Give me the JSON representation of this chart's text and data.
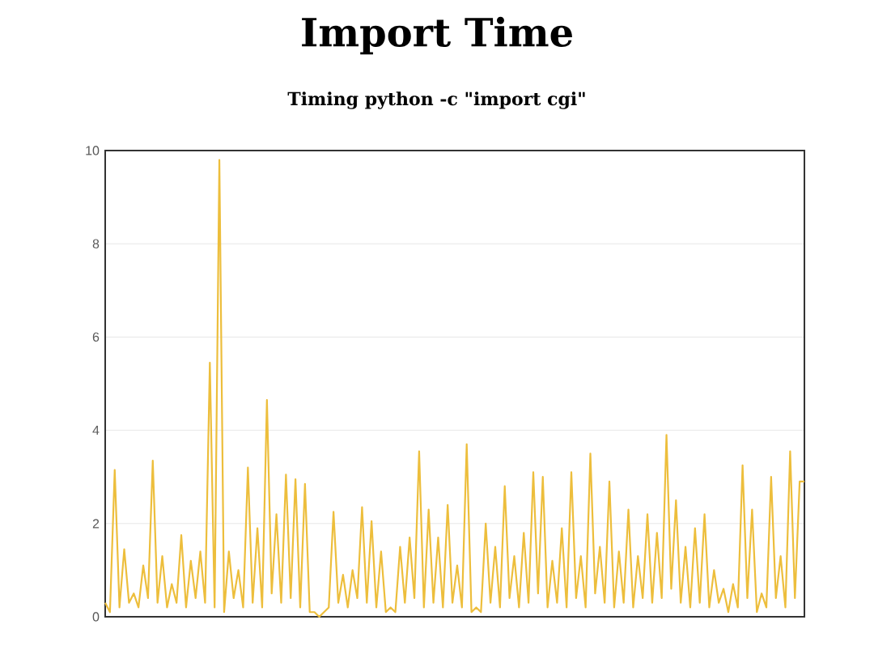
{
  "chart_data": {
    "type": "line",
    "title": "Import Time",
    "subtitle": "Timing python -c \"import cgi\"",
    "categories": [
      null,
      null,
      null,
      null,
      null,
      null,
      null,
      null,
      null,
      null,
      null,
      null,
      null,
      null,
      null,
      null,
      null,
      null,
      null,
      null,
      null,
      null,
      null,
      null,
      null,
      null,
      null,
      null,
      null,
      null,
      null,
      null,
      null,
      null,
      null,
      null,
      null,
      null,
      null,
      null,
      null,
      null,
      null,
      null,
      null,
      null,
      null,
      null,
      null,
      null,
      null,
      null,
      null,
      null,
      null,
      null,
      null,
      null,
      null,
      null,
      null,
      null,
      null,
      null,
      null,
      null,
      null,
      null,
      null,
      null,
      null,
      null,
      null,
      null,
      null,
      null,
      null,
      null,
      null,
      null,
      null,
      null,
      null,
      null,
      null,
      null,
      null,
      null,
      null,
      null,
      null,
      null,
      null,
      null,
      null,
      null,
      null,
      null,
      null,
      null,
      null,
      null,
      null,
      null,
      null,
      null,
      null,
      null,
      null,
      null,
      null,
      null,
      null,
      null,
      null,
      null,
      null,
      null,
      null,
      null,
      null,
      null,
      null,
      null,
      null,
      null,
      null,
      null,
      null,
      null,
      null,
      null,
      null,
      null,
      null,
      null,
      null,
      null,
      null,
      null,
      null,
      null,
      null,
      null,
      null,
      null,
      null,
      null
    ],
    "series": [
      {
        "color": "#edbe3c",
        "values": [
          0.3,
          0.1,
          3.15,
          0.2,
          1.45,
          0.3,
          0.5,
          0.2,
          1.1,
          0.4,
          3.35,
          0.3,
          1.3,
          0.2,
          0.7,
          0.3,
          1.75,
          0.2,
          1.2,
          0.4,
          1.4,
          0.3,
          5.45,
          0.2,
          9.8,
          0.1,
          1.4,
          0.4,
          1.0,
          0.2,
          3.2,
          0.3,
          1.9,
          0.2,
          4.65,
          0.5,
          2.2,
          0.3,
          3.05,
          0.4,
          2.95,
          0.2,
          2.85,
          0.1,
          0.1,
          0.0,
          0.1,
          0.2,
          2.25,
          0.3,
          0.9,
          0.2,
          1.0,
          0.4,
          2.35,
          0.3,
          2.05,
          0.2,
          1.4,
          0.1,
          0.2,
          0.1,
          1.5,
          0.3,
          1.7,
          0.4,
          3.55,
          0.2,
          2.3,
          0.3,
          1.7,
          0.2,
          2.4,
          0.3,
          1.1,
          0.2,
          3.7,
          0.1,
          0.2,
          0.1,
          2.0,
          0.3,
          1.5,
          0.2,
          2.8,
          0.4,
          1.3,
          0.2,
          1.8,
          0.3,
          3.1,
          0.5,
          3.0,
          0.2,
          1.2,
          0.3,
          1.9,
          0.2,
          3.1,
          0.4,
          1.3,
          0.2,
          3.5,
          0.5,
          1.5,
          0.3,
          2.9,
          0.2,
          1.4,
          0.3,
          2.3,
          0.2,
          1.3,
          0.4,
          2.2,
          0.3,
          1.8,
          0.4,
          3.9,
          0.6,
          2.5,
          0.3,
          1.5,
          0.2,
          1.9,
          0.3,
          2.2,
          0.2,
          1.0,
          0.3,
          0.6,
          0.1,
          0.7,
          0.2,
          3.25,
          0.4,
          2.3,
          0.1,
          0.5,
          0.2,
          3.0,
          0.4,
          1.3,
          0.2,
          3.55,
          0.4,
          2.9,
          2.9
        ]
      }
    ],
    "ylim": [
      0,
      10
    ],
    "yticks": [
      0,
      2,
      4,
      6,
      8,
      10
    ],
    "grid": "y",
    "marker": "none",
    "tick_labels": "y"
  }
}
